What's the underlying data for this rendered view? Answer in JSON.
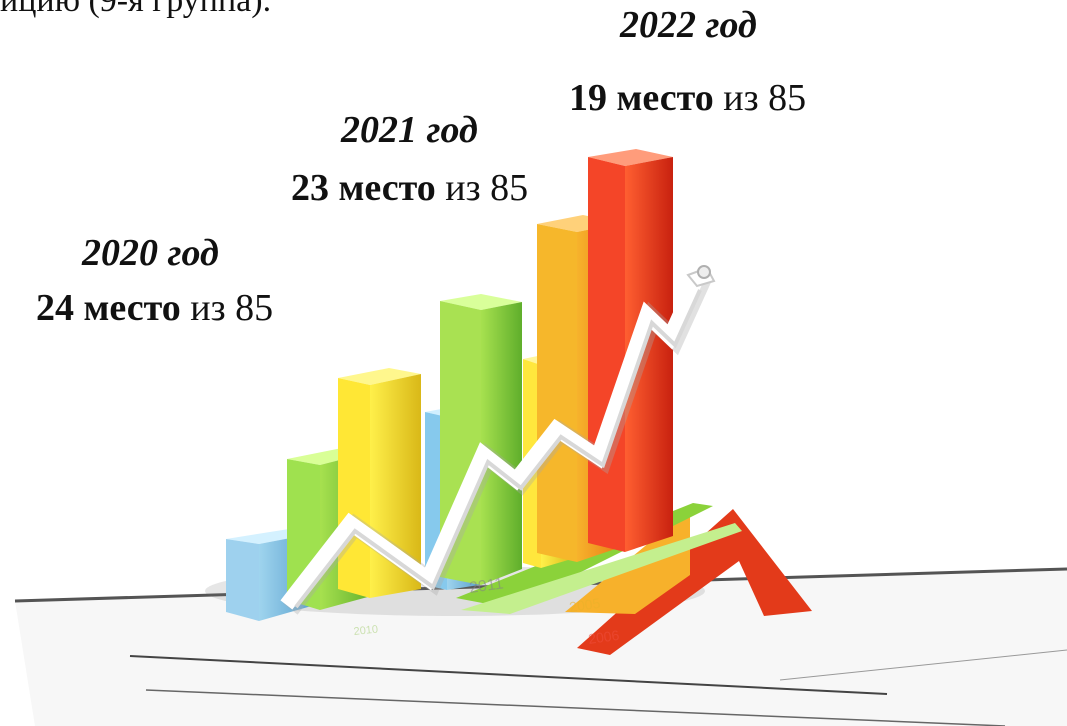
{
  "top_clipped_text": "ицию (9-я группа).",
  "entries": [
    {
      "year": "2020 год",
      "place_number": "24 место",
      "place_suffix": " из 85"
    },
    {
      "year": "2021 год",
      "place_number": "23 место",
      "place_suffix": " из 85"
    },
    {
      "year": "2022 год",
      "place_number": "19 место",
      "place_suffix": " из 85"
    }
  ],
  "illustration": {
    "bar_colors": [
      "#79b7d8",
      "#8dcf3d",
      "#f2df24",
      "#5aa3d1",
      "#7fcb32",
      "#f4d42a",
      "#f1a21d",
      "#e9381f"
    ],
    "accent_colors": [
      "#e42a18",
      "#f5a31a",
      "#8fd23d",
      "#52b8e8"
    ],
    "line_color": "#ffffff"
  }
}
